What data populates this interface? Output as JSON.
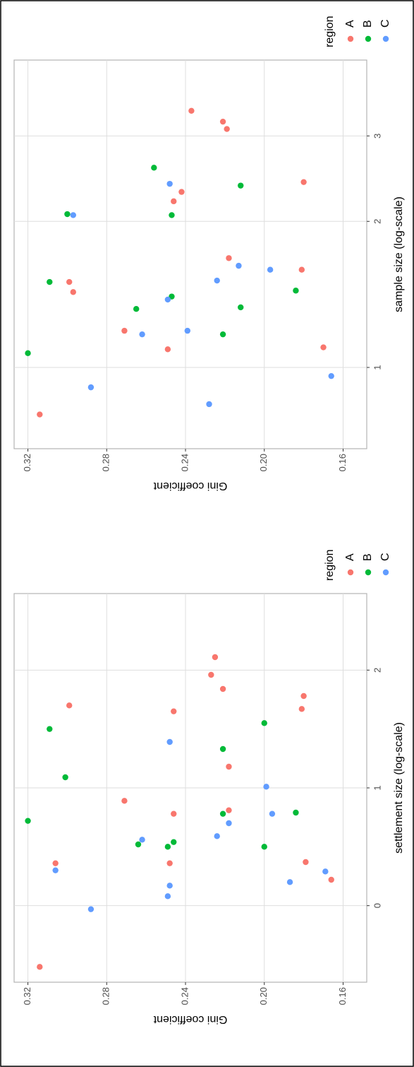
{
  "chart_data": [
    {
      "type": "scatter",
      "x_label": "sample size (log-scale)",
      "y_label": "Gini coefficient",
      "legend_title": "region",
      "xlim": [
        0.68,
        4.3
      ],
      "log_x": true,
      "xticks": [
        1,
        2,
        3
      ],
      "ylim": [
        0.148,
        0.327
      ],
      "yticks": [
        0.16,
        {
          "value": 0.2,
          "label": "0.20"
        },
        0.24,
        0.28,
        0.32
      ],
      "grid": true,
      "series": [
        {
          "name": "A",
          "color": "#F8766D",
          "x": [
            0.8,
            1.09,
            1.19,
            1.43,
            1.5,
            1.1,
            1.68,
            1.59,
            2.2,
            2.3,
            2.41,
            3.21,
            3.1,
            3.38
          ],
          "values": [
            0.314,
            0.249,
            0.271,
            0.297,
            0.299,
            0.17,
            0.218,
            0.181,
            0.246,
            0.242,
            0.18,
            0.221,
            0.219,
            0.237
          ]
        },
        {
          "name": "B",
          "color": "#00BA38",
          "x": [
            1.07,
            1.17,
            1.32,
            1.4,
            1.5,
            1.33,
            2.07,
            2.06,
            1.44,
            2.37,
            2.58
          ],
          "values": [
            0.32,
            0.221,
            0.265,
            0.247,
            0.309,
            0.212,
            0.3,
            0.247,
            0.184,
            0.212,
            0.256
          ]
        },
        {
          "name": "C",
          "color": "#619CFF",
          "x": [
            0.91,
            0.84,
            0.96,
            1.17,
            1.19,
            1.38,
            1.51,
            2.06,
            1.62,
            1.59,
            2.39
          ],
          "values": [
            0.288,
            0.228,
            0.166,
            0.262,
            0.239,
            0.249,
            0.224,
            0.297,
            0.213,
            0.197,
            0.248
          ]
        }
      ]
    },
    {
      "type": "scatter",
      "x_label": "settlement size (log-scale)",
      "y_label": "Gini coefficient",
      "legend_title": "region",
      "xlim": [
        -0.65,
        2.65
      ],
      "log_x": false,
      "xticks": [
        0,
        1,
        2
      ],
      "ylim": [
        0.148,
        0.327
      ],
      "yticks": [
        0.16,
        {
          "value": 0.2,
          "label": "0.20"
        },
        0.24,
        0.28,
        0.32
      ],
      "grid": true,
      "series": [
        {
          "name": "A",
          "color": "#F8766D",
          "x": [
            -0.52,
            0.36,
            0.36,
            0.89,
            1.7,
            0.78,
            0.81,
            1.18,
            0.37,
            0.22,
            1.65,
            1.78,
            1.67,
            1.84,
            2.11,
            1.96
          ],
          "values": [
            0.314,
            0.306,
            0.248,
            0.271,
            0.299,
            0.246,
            0.218,
            0.218,
            0.179,
            0.166,
            0.246,
            0.18,
            0.181,
            0.221,
            0.225,
            0.227
          ]
        },
        {
          "name": "B",
          "color": "#00BA38",
          "x": [
            0.72,
            0.52,
            0.54,
            0.5,
            1.09,
            1.5,
            0.78,
            0.5,
            0.79,
            1.55,
            1.33
          ],
          "values": [
            0.32,
            0.264,
            0.246,
            0.249,
            0.301,
            0.309,
            0.221,
            0.2,
            0.184,
            0.2,
            0.221
          ]
        },
        {
          "name": "C",
          "color": "#619CFF",
          "x": [
            0.3,
            -0.03,
            0.08,
            0.17,
            0.56,
            0.59,
            0.7,
            1.39,
            0.78,
            1.01,
            0.29,
            0.2
          ],
          "values": [
            0.306,
            0.288,
            0.249,
            0.248,
            0.262,
            0.224,
            0.218,
            0.248,
            0.196,
            0.199,
            0.169,
            0.187
          ]
        }
      ]
    }
  ]
}
